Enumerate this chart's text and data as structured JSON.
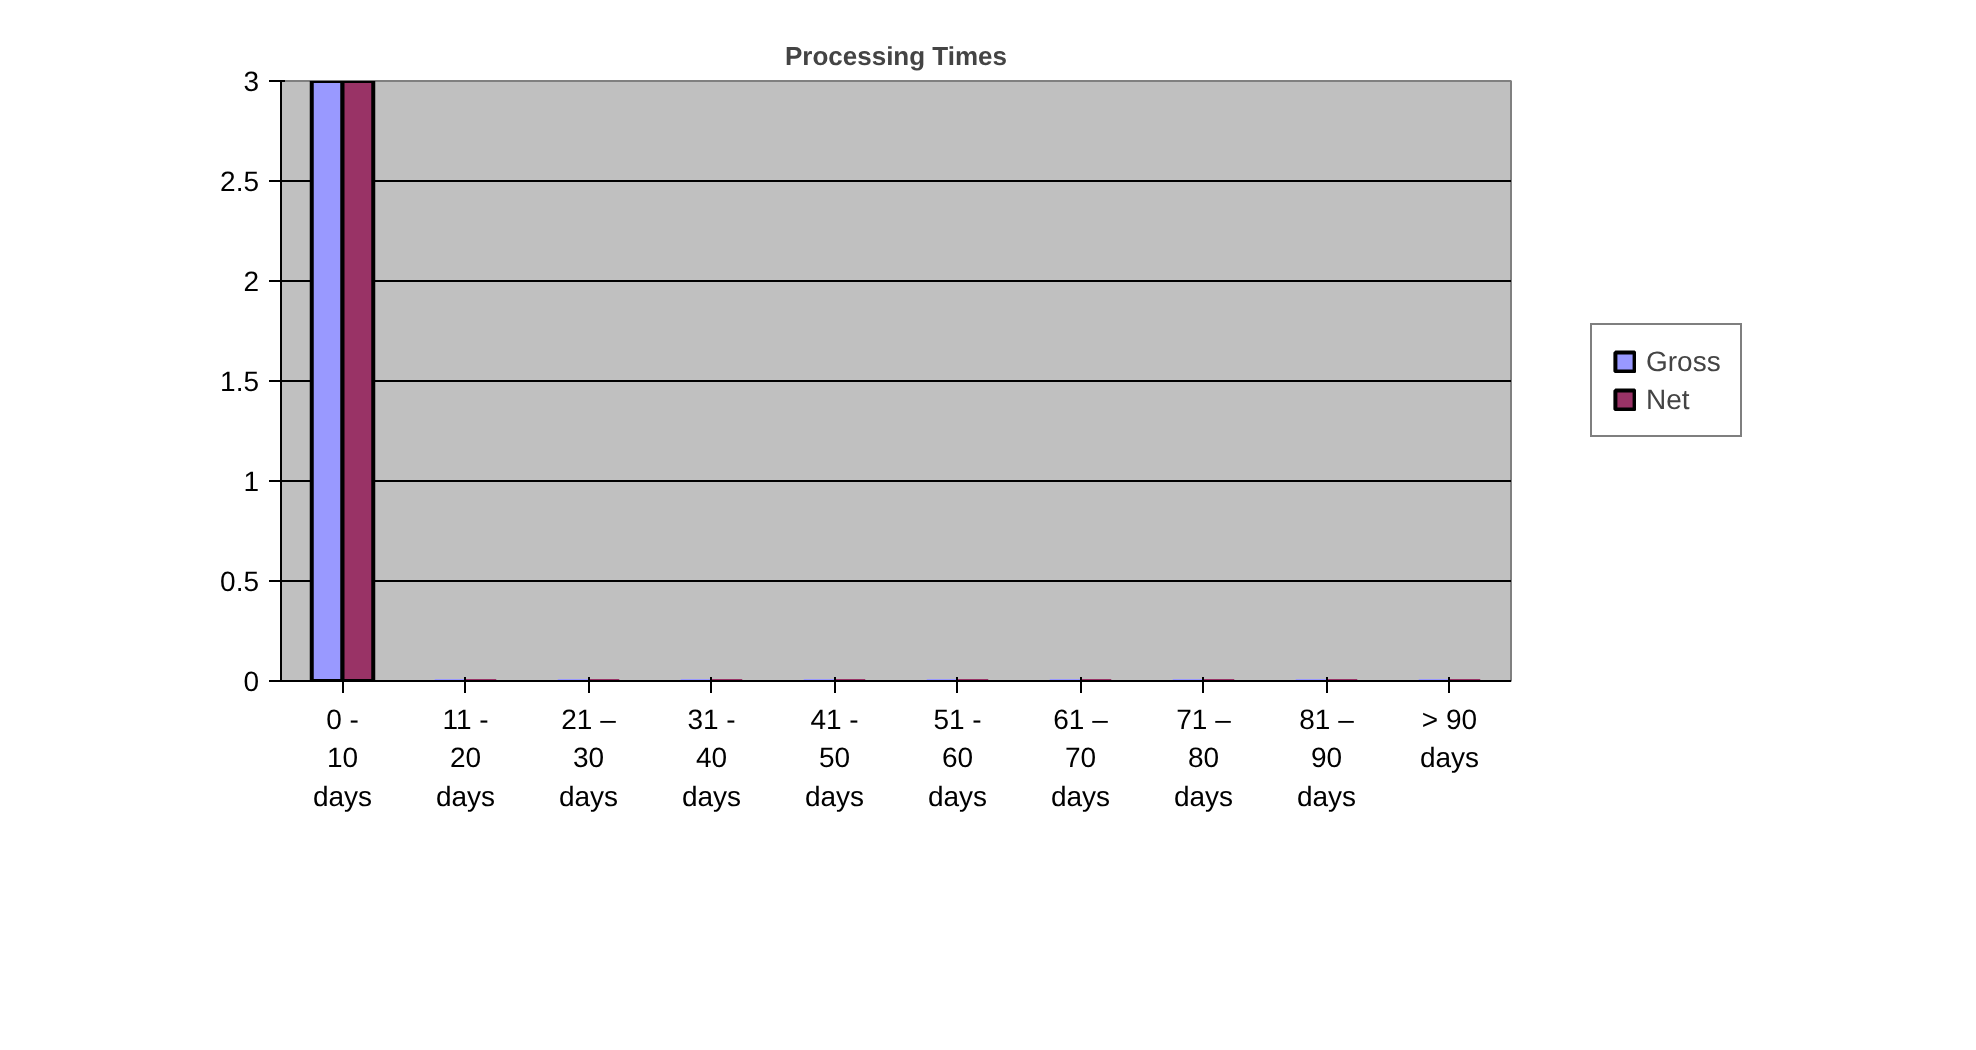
{
  "chart_data": {
    "type": "bar",
    "title": "Processing Times",
    "categories": [
      "0 - 10 days",
      "11 - 20 days",
      "21 – 30 days",
      "31 - 40 days",
      "41 - 50 days",
      "51 - 60 days",
      "61 – 70 days",
      "71 – 80 days",
      "81 – 90 days",
      "> 90 days"
    ],
    "series": [
      {
        "name": "Gross",
        "color": "#9999ff",
        "values": [
          3,
          0,
          0,
          0,
          0,
          0,
          0,
          0,
          0,
          0
        ]
      },
      {
        "name": "Net",
        "color": "#993366",
        "values": [
          3,
          0,
          0,
          0,
          0,
          0,
          0,
          0,
          0,
          0
        ]
      }
    ],
    "ylim": [
      0,
      3
    ],
    "yticks": [
      0,
      0.5,
      1,
      1.5,
      2,
      2.5,
      3
    ],
    "grid": "y",
    "legend": "right"
  }
}
